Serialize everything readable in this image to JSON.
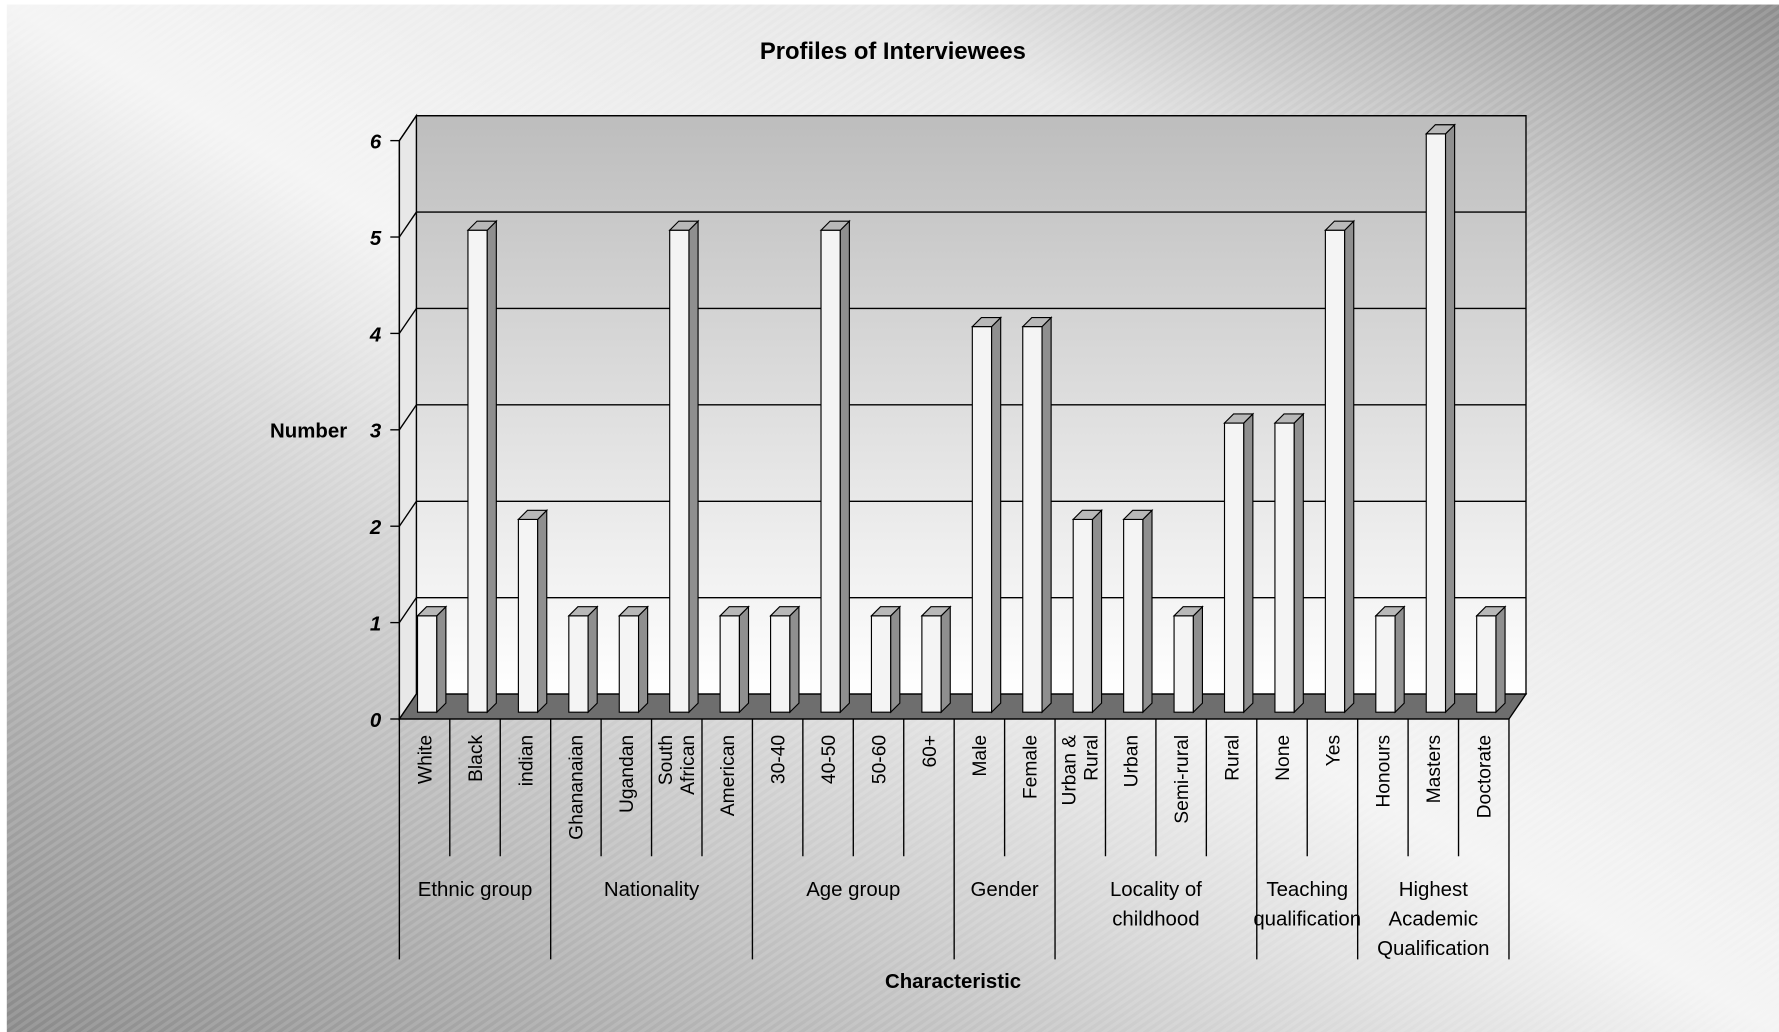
{
  "chart_data": {
    "type": "bar3d",
    "title": "Profiles of Interviewees",
    "y_label": "Number",
    "x_label": "Characteristic",
    "ylim": [
      0,
      6
    ],
    "yticks": [
      0,
      1,
      2,
      3,
      4,
      5,
      6
    ],
    "grid": true,
    "color": "#f4f4f4",
    "groups": [
      {
        "name": "Ethnic group",
        "categories": [
          "White",
          "Black",
          "indian"
        ],
        "values": [
          1,
          5,
          2
        ]
      },
      {
        "name": "Nationality",
        "categories": [
          "Ghananaian",
          "Ugandan",
          "South African",
          "American"
        ],
        "values": [
          1,
          1,
          5,
          1
        ]
      },
      {
        "name": "Age group",
        "categories": [
          "30-40",
          "40-50",
          "50-60",
          "60+"
        ],
        "values": [
          1,
          5,
          1,
          1
        ]
      },
      {
        "name": "Gender",
        "categories": [
          "Male",
          "Female"
        ],
        "values": [
          4,
          4
        ]
      },
      {
        "name": "Locality of childhood",
        "categories": [
          "Urban & Rural",
          "Urban",
          "Semi-rural",
          "Rural"
        ],
        "values": [
          2,
          2,
          1,
          3
        ]
      },
      {
        "name": "Teaching qualification",
        "categories": [
          "None",
          "Yes"
        ],
        "values": [
          3,
          5
        ]
      },
      {
        "name": "Highest Academic Qualification",
        "categories": [
          "Honours",
          "Masters",
          "Doctorate"
        ],
        "values": [
          1,
          6,
          1
        ]
      }
    ]
  }
}
